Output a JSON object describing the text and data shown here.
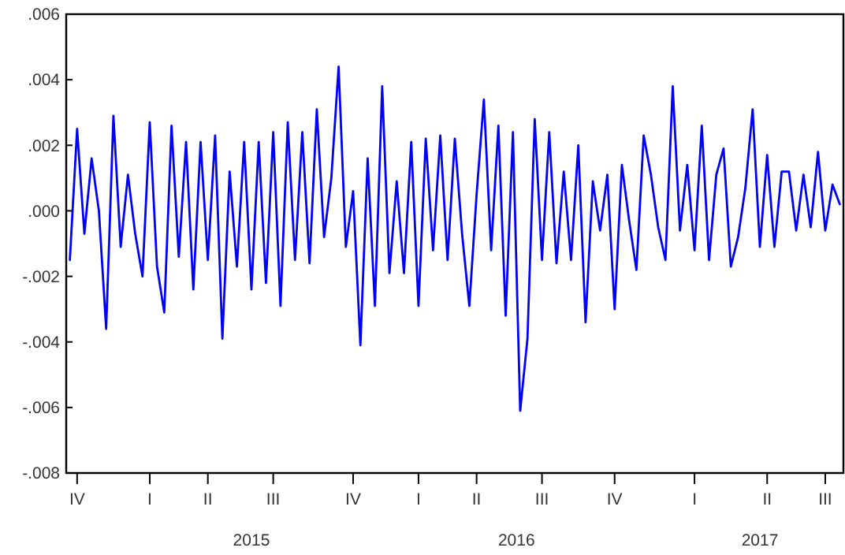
{
  "chart_data": {
    "type": "line",
    "categories": [
      null,
      "IV",
      null,
      null,
      null,
      null,
      null,
      null,
      null,
      null,
      null,
      "I",
      null,
      null,
      null,
      null,
      null,
      null,
      null,
      "II",
      null,
      null,
      null,
      null,
      null,
      null,
      null,
      null,
      "III",
      null,
      null,
      null,
      null,
      null,
      null,
      null,
      null,
      null,
      null,
      "IV",
      null,
      null,
      null,
      null,
      null,
      null,
      null,
      null,
      "I",
      null,
      null,
      null,
      null,
      null,
      null,
      null,
      "II",
      null,
      null,
      null,
      null,
      null,
      null,
      null,
      null,
      "III",
      null,
      null,
      null,
      null,
      null,
      null,
      null,
      null,
      null,
      "IV",
      null,
      null,
      null,
      null,
      null,
      null,
      null,
      null,
      null,
      null,
      "I",
      null,
      null,
      null,
      null,
      null,
      null,
      null,
      null,
      null,
      "II",
      null,
      null,
      null,
      null,
      null,
      null,
      null,
      "III",
      null,
      null
    ],
    "series": [
      {
        "color": "#0000ff",
        "values": [
          -0.0015,
          0.0025,
          -0.0007,
          0.0016,
          0,
          -0.0036,
          0.0029,
          -0.0011,
          0.0011,
          -0.0007,
          -0.002,
          0.0027,
          -0.0017,
          -0.0031,
          0.0026,
          -0.0014,
          0.0021,
          -0.0024,
          0.0021,
          -0.0015,
          0.0023,
          -0.0039,
          0.0012,
          -0.0017,
          0.0021,
          -0.0024,
          0.0021,
          -0.0022,
          0.0024,
          -0.0029,
          0.0027,
          -0.0015,
          0.0024,
          -0.0016,
          0.0031,
          -0.0008,
          0.001,
          0.0044,
          -0.0011,
          0.0006,
          -0.0041,
          0.0016,
          -0.0029,
          0.0038,
          -0.0019,
          0.0009,
          -0.0019,
          0.0021,
          -0.0029,
          0.0022,
          -0.0012,
          0.0023,
          -0.0015,
          0.0022,
          -0.0007,
          -0.0029,
          0.0005,
          0.0034,
          -0.0012,
          0.0026,
          -0.0032,
          0.0024,
          -0.0061,
          -0.0039,
          0.0028,
          -0.0015,
          0.0024,
          -0.0016,
          0.0012,
          -0.0015,
          0.002,
          -0.0034,
          0.0009,
          -0.0006,
          0.0011,
          -0.003,
          0.0014,
          -0.0003,
          -0.0018,
          0.0023,
          0.0011,
          -0.0005,
          -0.0015,
          0.0038,
          -0.0006,
          0.0014,
          -0.0012,
          0.0026,
          -0.0015,
          0.0011,
          0.0019,
          -0.0017,
          -0.0008,
          0.0007,
          0.0031,
          -0.0011,
          0.0017,
          -0.0011,
          0.0012,
          0.0012,
          -0.0006,
          0.0011,
          -0.0005,
          0.0018,
          -0.0006,
          0.0008,
          0.0002
        ]
      }
    ],
    "annotations": [
      "2015",
      "2016",
      "2017"
    ],
    "ylim": [
      -0.008,
      0.006
    ],
    "yticks": [
      {
        "value": -0.008,
        "label": "-.008"
      },
      {
        "value": -0.006,
        "label": "-.006"
      },
      {
        "value": -0.004,
        "label": "-.004"
      },
      {
        "value": -0.002,
        "label": "-.002"
      },
      {
        "value": 0,
        "label": ".000"
      },
      {
        "value": 0.002,
        "label": ".002"
      },
      {
        "value": 0.004,
        "label": ".004"
      },
      {
        "value": 0.006,
        "label": ".006"
      }
    ],
    "grid": false,
    "marker": "none",
    "line_style": "solid"
  }
}
